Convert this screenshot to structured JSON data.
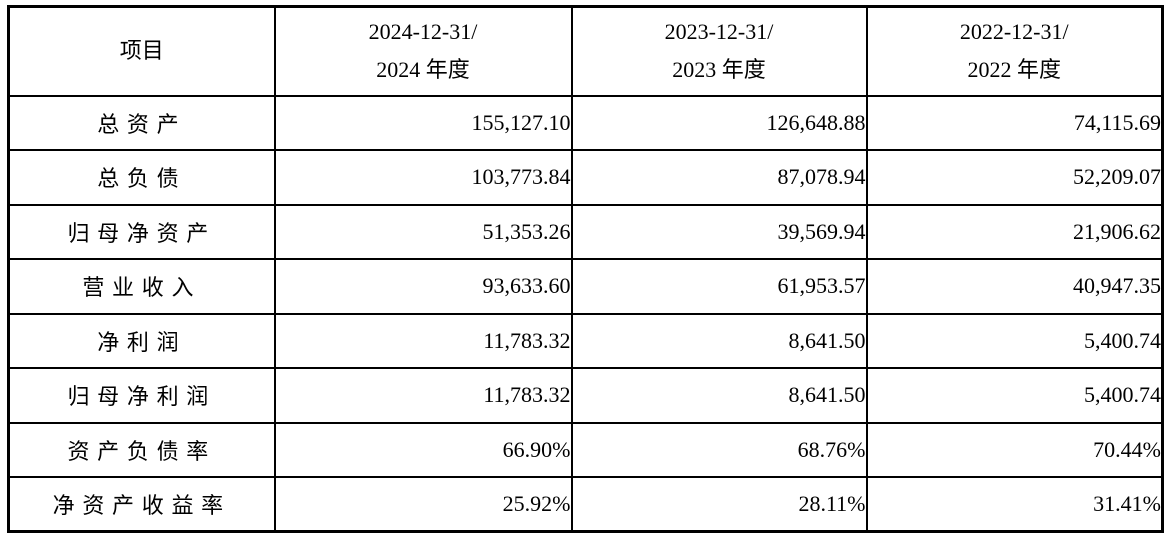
{
  "table": {
    "header": {
      "item_label": "项目",
      "periods": [
        {
          "line1": "2024-12-31/",
          "line2": "2024 年度"
        },
        {
          "line1": "2023-12-31/",
          "line2": "2023 年度"
        },
        {
          "line1": "2022-12-31/",
          "line2": "2022 年度"
        }
      ]
    },
    "rows": [
      {
        "label": "总资产",
        "values": [
          "155,127.10",
          "126,648.88",
          "74,115.69"
        ]
      },
      {
        "label": "总负债",
        "values": [
          "103,773.84",
          "87,078.94",
          "52,209.07"
        ]
      },
      {
        "label": "归母净资产",
        "values": [
          "51,353.26",
          "39,569.94",
          "21,906.62"
        ]
      },
      {
        "label": "营业收入",
        "values": [
          "93,633.60",
          "61,953.57",
          "40,947.35"
        ]
      },
      {
        "label": "净利润",
        "values": [
          "11,783.32",
          "8,641.50",
          "5,400.74"
        ]
      },
      {
        "label": "归母净利润",
        "values": [
          "11,783.32",
          "8,641.50",
          "5,400.74"
        ]
      },
      {
        "label": "资产负债率",
        "values": [
          "66.90%",
          "68.76%",
          "70.44%"
        ]
      },
      {
        "label": "净资产收益率",
        "values": [
          "25.92%",
          "28.11%",
          "31.41%"
        ]
      }
    ],
    "colors": {
      "border": "#000000",
      "text": "#000000",
      "background": "#ffffff"
    }
  }
}
